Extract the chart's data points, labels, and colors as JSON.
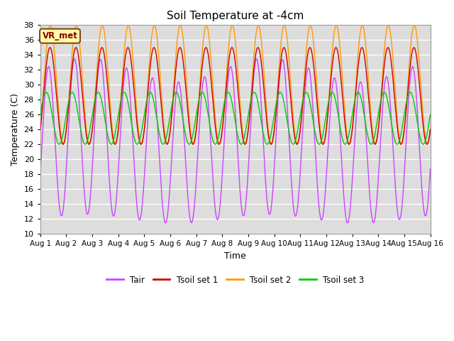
{
  "title": "Soil Temperature at -4cm",
  "xlabel": "Time",
  "ylabel": "Temperature (C)",
  "ylim": [
    10,
    38
  ],
  "yticks": [
    10,
    12,
    14,
    16,
    18,
    20,
    22,
    24,
    26,
    28,
    30,
    32,
    34,
    36,
    38
  ],
  "colors": {
    "Tair": "#cc44ff",
    "Tsoil_set1": "#cc0000",
    "Tsoil_set2": "#ff9900",
    "Tsoil_set3": "#00cc00"
  },
  "legend_label": "VR_met",
  "background_color": "#dddddd",
  "n_days": 15,
  "points_per_day": 48
}
